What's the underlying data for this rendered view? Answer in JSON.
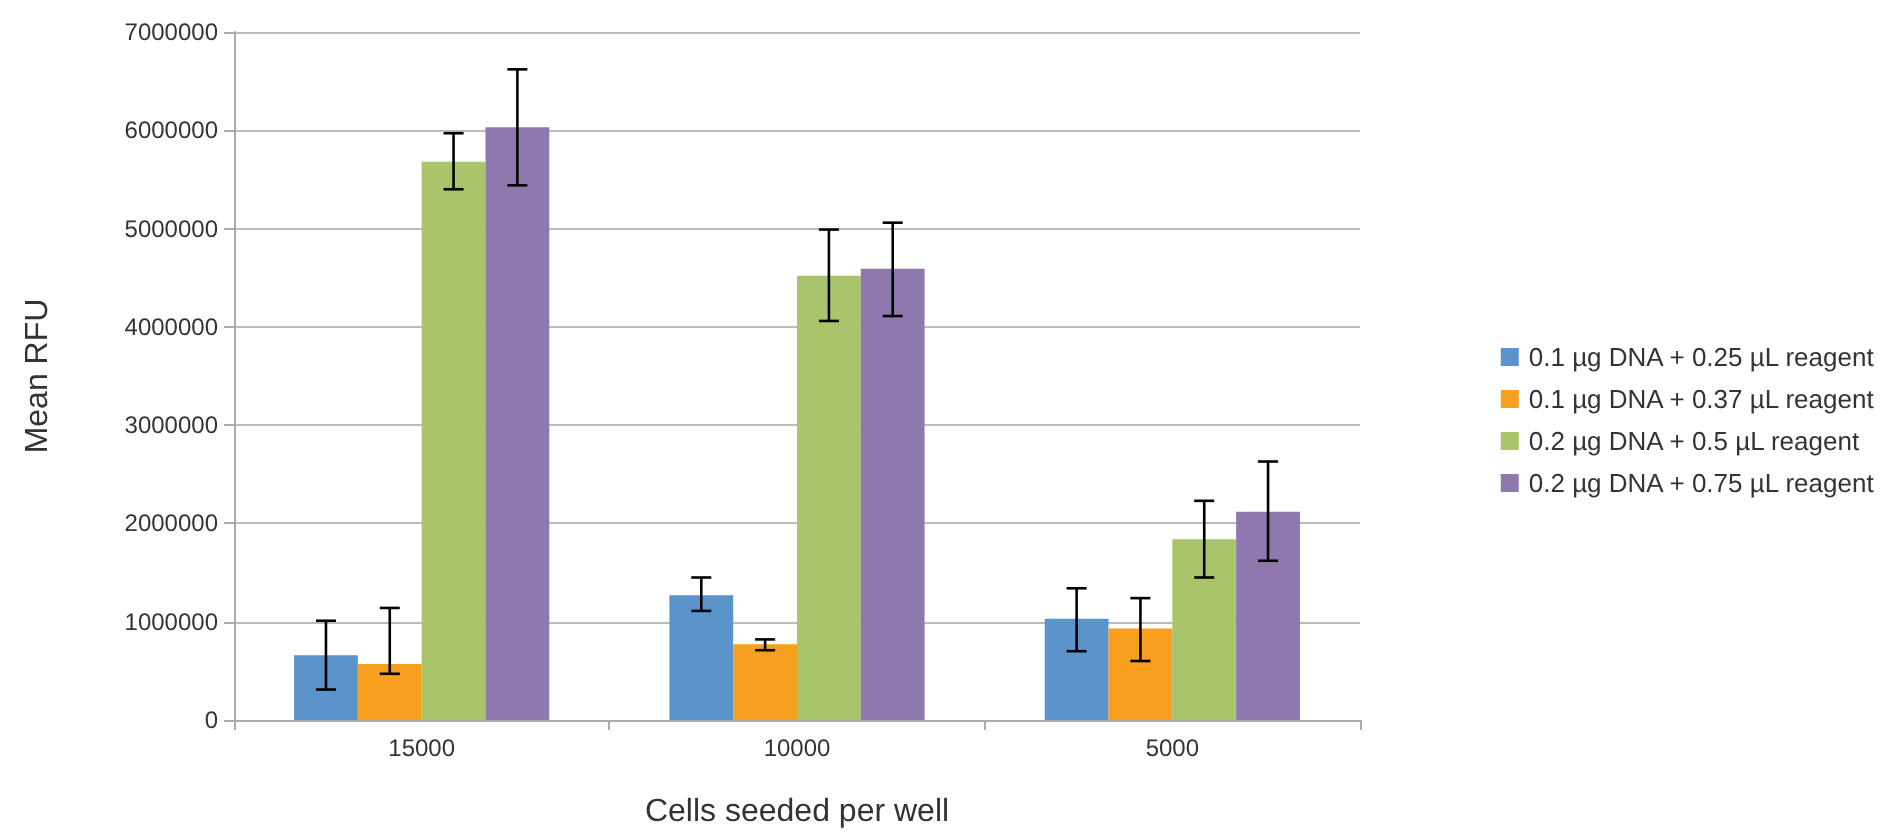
{
  "chart_data": {
    "type": "bar",
    "xlabel": "Cells seeded per well",
    "ylabel": "Mean RFU",
    "categories": [
      "15000",
      "10000",
      "5000"
    ],
    "series": [
      {
        "name": "0.1 µg DNA + 0.25 µL reagent",
        "color": "#5b93cb",
        "values": [
          660000,
          1270000,
          1030000
        ],
        "errors": [
          [
            310000,
            1010000
          ],
          [
            1110000,
            1450000
          ],
          [
            700000,
            1340000
          ]
        ]
      },
      {
        "name": "0.1 µg DNA + 0.37 µL reagent",
        "color": "#f79f1f",
        "values": [
          570000,
          770000,
          930000
        ],
        "errors": [
          [
            470000,
            1140000
          ],
          [
            710000,
            820000
          ],
          [
            600000,
            1240000
          ]
        ]
      },
      {
        "name": "0.2 µg DNA + 0.5 µL reagent",
        "color": "#a9c46b",
        "values": [
          5680000,
          4520000,
          1840000
        ],
        "errors": [
          [
            5400000,
            5970000
          ],
          [
            4060000,
            4990000
          ],
          [
            1450000,
            2230000
          ]
        ]
      },
      {
        "name": "0.2 µg DNA + 0.75 µL reagent",
        "color": "#8f78ae",
        "values": [
          6030000,
          4590000,
          2120000
        ],
        "errors": [
          [
            5440000,
            6620000
          ],
          [
            4110000,
            5060000
          ],
          [
            1620000,
            2630000
          ]
        ]
      }
    ],
    "ylim": [
      0,
      7000000
    ],
    "yticks": [
      0,
      1000000,
      2000000,
      3000000,
      4000000,
      5000000,
      6000000,
      7000000
    ],
    "grid": "y",
    "legend": "right"
  }
}
